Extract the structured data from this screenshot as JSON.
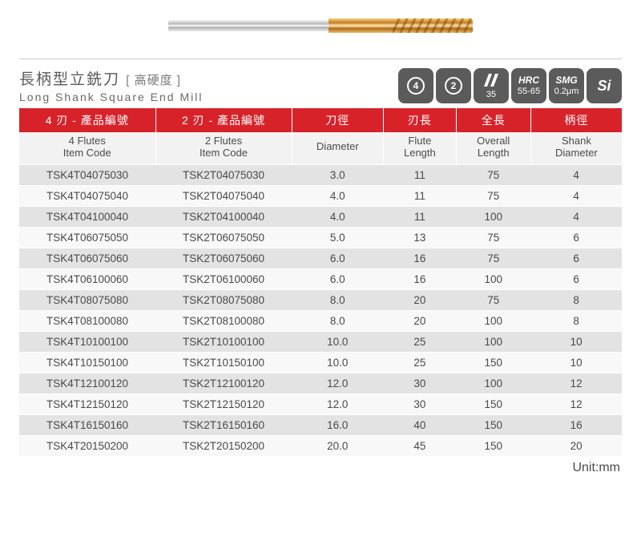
{
  "title": {
    "cn_main": "長柄型立銑刀",
    "cn_sub": "[ 高硬度 ]",
    "en": "Long Shank Square End Mill"
  },
  "badges": {
    "flute4": "4",
    "flute2": "2",
    "helix": "35",
    "hrc_label": "HRC",
    "hrc_value": "55-65",
    "smg_label": "SMG",
    "smg_value": "0.2μm",
    "si": "Si"
  },
  "headers": {
    "red": [
      "4 刃 - 產品編號",
      "2 刃 - 產品編號",
      "刀徑",
      "刃長",
      "全長",
      "柄徑"
    ],
    "gray": [
      "4 Flutes\nItem Code",
      "2 Flutes\nItem Code",
      "Diameter",
      "Flute\nLength",
      "Overall\nLength",
      "Shank\nDiameter"
    ]
  },
  "rows": [
    [
      "TSK4T04075030",
      "TSK2T04075030",
      "3.0",
      "11",
      "75",
      "4"
    ],
    [
      "TSK4T04075040",
      "TSK2T04075040",
      "4.0",
      "11",
      "75",
      "4"
    ],
    [
      "TSK4T04100040",
      "TSK2T04100040",
      "4.0",
      "11",
      "100",
      "4"
    ],
    [
      "TSK4T06075050",
      "TSK2T06075050",
      "5.0",
      "13",
      "75",
      "6"
    ],
    [
      "TSK4T06075060",
      "TSK2T06075060",
      "6.0",
      "16",
      "75",
      "6"
    ],
    [
      "TSK4T06100060",
      "TSK2T06100060",
      "6.0",
      "16",
      "100",
      "6"
    ],
    [
      "TSK4T08075080",
      "TSK2T08075080",
      "8.0",
      "20",
      "75",
      "8"
    ],
    [
      "TSK4T08100080",
      "TSK2T08100080",
      "8.0",
      "20",
      "100",
      "8"
    ],
    [
      "TSK4T10100100",
      "TSK2T10100100",
      "10.0",
      "25",
      "100",
      "10"
    ],
    [
      "TSK4T10150100",
      "TSK2T10150100",
      "10.0",
      "25",
      "150",
      "10"
    ],
    [
      "TSK4T12100120",
      "TSK2T12100120",
      "12.0",
      "30",
      "100",
      "12"
    ],
    [
      "TSK4T12150120",
      "TSK2T12150120",
      "12.0",
      "30",
      "150",
      "12"
    ],
    [
      "TSK4T16150160",
      "TSK2T16150160",
      "16.0",
      "40",
      "150",
      "16"
    ],
    [
      "TSK4T20150200",
      "TSK2T20150200",
      "20.0",
      "45",
      "150",
      "20"
    ]
  ],
  "unit": "Unit:mm",
  "colors": {
    "header_bg": "#d8222a",
    "row_even": "#e3e3e3",
    "row_odd": "#f8f8f8",
    "badge_bg": "#5b5b5b"
  }
}
